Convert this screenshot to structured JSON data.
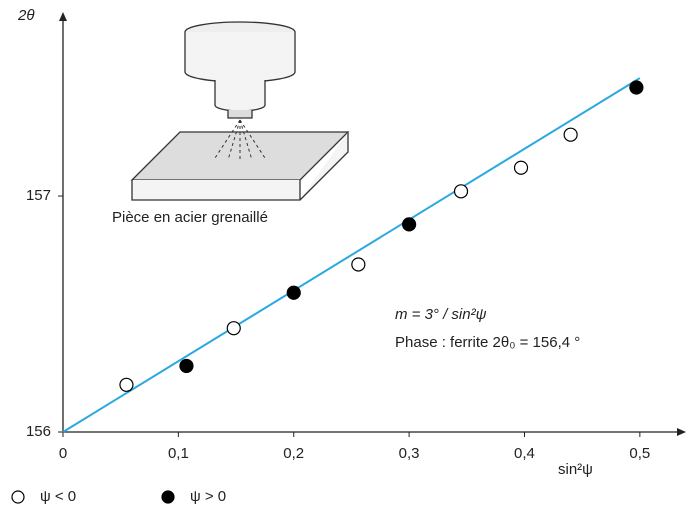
{
  "chart_data": {
    "type": "scatter",
    "y_label": "2θ",
    "x_label": "sin²ψ",
    "illustration_label": "Pièce en acier grenaillé",
    "annotations": [
      "m = 3° / sin²ψ",
      "Phase : ferrite 2θ₀ = 156,4 °"
    ],
    "xlim": [
      0,
      0.54
    ],
    "ylim": [
      156,
      157.78
    ],
    "xticks": [
      0,
      {
        "value": 0.1,
        "label": "0,1"
      },
      {
        "value": 0.2,
        "label": "0,2"
      },
      {
        "value": 0.3,
        "label": "0,3"
      },
      {
        "value": 0.4,
        "label": "0,4"
      },
      {
        "value": 0.5,
        "label": "0,5"
      }
    ],
    "yticks": [
      156,
      157
    ],
    "fit_line": {
      "x": [
        0,
        0.5
      ],
      "values": [
        156,
        157.5
      ],
      "color": "#29a9e0"
    },
    "series": [
      {
        "name": "ψ < 0",
        "marker": "open",
        "color": "#000000",
        "x": [
          0.055,
          0.148,
          0.256,
          0.345,
          0.397,
          0.44
        ],
        "values": [
          156.2,
          156.44,
          156.71,
          157.02,
          157.12,
          157.26
        ]
      },
      {
        "name": "ψ > 0",
        "marker": "filled",
        "color": "#000000",
        "x": [
          0.107,
          0.2,
          0.3,
          0.497
        ],
        "values": [
          156.28,
          156.59,
          156.88,
          157.46
        ]
      }
    ]
  }
}
